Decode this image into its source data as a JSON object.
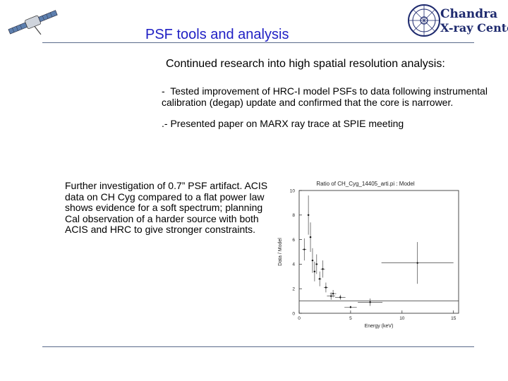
{
  "header": {
    "title": "PSF tools and analysis",
    "logo": {
      "line1": "Chandra",
      "line2": "X-ray Center"
    }
  },
  "content": {
    "subtitle": "Continued research into high spatial resolution analysis:",
    "bullet1": "-  Tested improvement of HRC-I model PSFs to data following instrumental\ncalibration (degap) update and confirmed that the core is narrower.",
    "bullet2": ".-  Presented paper on MARX ray trace at SPIE meeting",
    "paragraph": "Further investigation of 0.7” PSF artifact. ACIS data on CH Cyg compared to a flat power law shows evidence for a soft spectrum; planning Cal observation of a harder source with both ACIS and HRC to give stronger constraints."
  },
  "colors": {
    "title": "#1f1fc4",
    "rule": "#5a6a8a",
    "logo": "#1e2a6e"
  },
  "chart_data": {
    "type": "scatter",
    "title": "Ratio of CH_Cyg_14405_arti.pi : Model",
    "xlabel": "Energy (keV)",
    "ylabel": "Data / Model",
    "xlim": [
      0,
      15.5
    ],
    "ylim": [
      0,
      10
    ],
    "xticks": [
      0,
      5,
      10,
      15
    ],
    "yticks": [
      0,
      2,
      4,
      6,
      8,
      10
    ],
    "reference_line": 1,
    "points": [
      {
        "x": 0.5,
        "y": 5.2,
        "xerr": 0.2,
        "yerr": 0.9
      },
      {
        "x": 0.9,
        "y": 8.0,
        "xerr": 0.1,
        "yerr": 1.6
      },
      {
        "x": 1.1,
        "y": 6.2,
        "xerr": 0.1,
        "yerr": 1.2
      },
      {
        "x": 1.3,
        "y": 4.3,
        "xerr": 0.1,
        "yerr": 1.0
      },
      {
        "x": 1.5,
        "y": 3.4,
        "xerr": 0.1,
        "yerr": 0.8
      },
      {
        "x": 1.7,
        "y": 4.0,
        "xerr": 0.1,
        "yerr": 0.8
      },
      {
        "x": 2.0,
        "y": 2.8,
        "xerr": 0.15,
        "yerr": 0.6
      },
      {
        "x": 2.3,
        "y": 3.6,
        "xerr": 0.2,
        "yerr": 0.7
      },
      {
        "x": 2.6,
        "y": 2.1,
        "xerr": 0.2,
        "yerr": 0.4
      },
      {
        "x": 3.1,
        "y": 1.4,
        "xerr": 0.4,
        "yerr": 0.3
      },
      {
        "x": 3.3,
        "y": 1.6,
        "xerr": 0.3,
        "yerr": 0.3
      },
      {
        "x": 4.0,
        "y": 1.3,
        "xerr": 0.5,
        "yerr": 0.2
      },
      {
        "x": 5.0,
        "y": 0.5,
        "xerr": 0.6,
        "yerr": 0.1
      },
      {
        "x": 6.9,
        "y": 0.9,
        "xerr": 1.2,
        "yerr": 0.3
      },
      {
        "x": 11.5,
        "y": 4.1,
        "xerr": 3.5,
        "yerr": 1.7
      }
    ]
  }
}
